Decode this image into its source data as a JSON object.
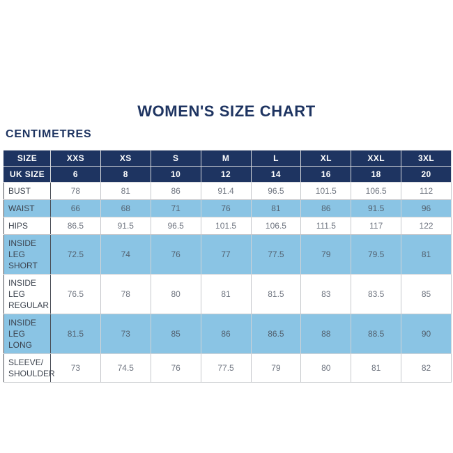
{
  "colors": {
    "navy": "#1e3461",
    "light_blue": "#8ac4e4",
    "title_text": "#1e3461",
    "header_text": "#ffffff",
    "body_text": "#6f7580",
    "label_text": "#3c434e",
    "background": "#ffffff"
  },
  "chart_data": {
    "type": "table",
    "title": "WOMEN'S SIZE CHART",
    "unit": "CENTIMETRES",
    "header_rows": [
      {
        "label": "SIZE",
        "values": [
          "XXS",
          "XS",
          "S",
          "M",
          "L",
          "XL",
          "XXL",
          "3XL"
        ]
      },
      {
        "label": "UK SIZE",
        "values": [
          6,
          8,
          10,
          12,
          14,
          16,
          18,
          20
        ]
      }
    ],
    "rows": [
      {
        "label": "BUST",
        "highlight": false,
        "values": [
          78,
          81,
          86,
          91.4,
          96.5,
          101.5,
          106.5,
          112
        ]
      },
      {
        "label": "WAIST",
        "highlight": true,
        "values": [
          66,
          68,
          71,
          76,
          81,
          86,
          91.5,
          96
        ]
      },
      {
        "label": "HIPS",
        "highlight": false,
        "values": [
          86.5,
          91.5,
          96.5,
          101.5,
          106.5,
          111.5,
          117,
          122
        ]
      },
      {
        "label": "INSIDE LEG SHORT",
        "highlight": true,
        "values": [
          72.5,
          74,
          76,
          77,
          77.5,
          79,
          79.5,
          81
        ]
      },
      {
        "label": "INSIDE LEG REGULAR",
        "highlight": false,
        "values": [
          76.5,
          78,
          80,
          81,
          81.5,
          83,
          83.5,
          85
        ]
      },
      {
        "label": "INSIDE LEG LONG",
        "highlight": true,
        "values": [
          81.5,
          73,
          85,
          86,
          86.5,
          88,
          88.5,
          90
        ]
      },
      {
        "label": "SLEEVE/\nSHOULDER",
        "highlight": false,
        "values": [
          73,
          74.5,
          76,
          77.5,
          79,
          80,
          81,
          82
        ]
      }
    ]
  }
}
